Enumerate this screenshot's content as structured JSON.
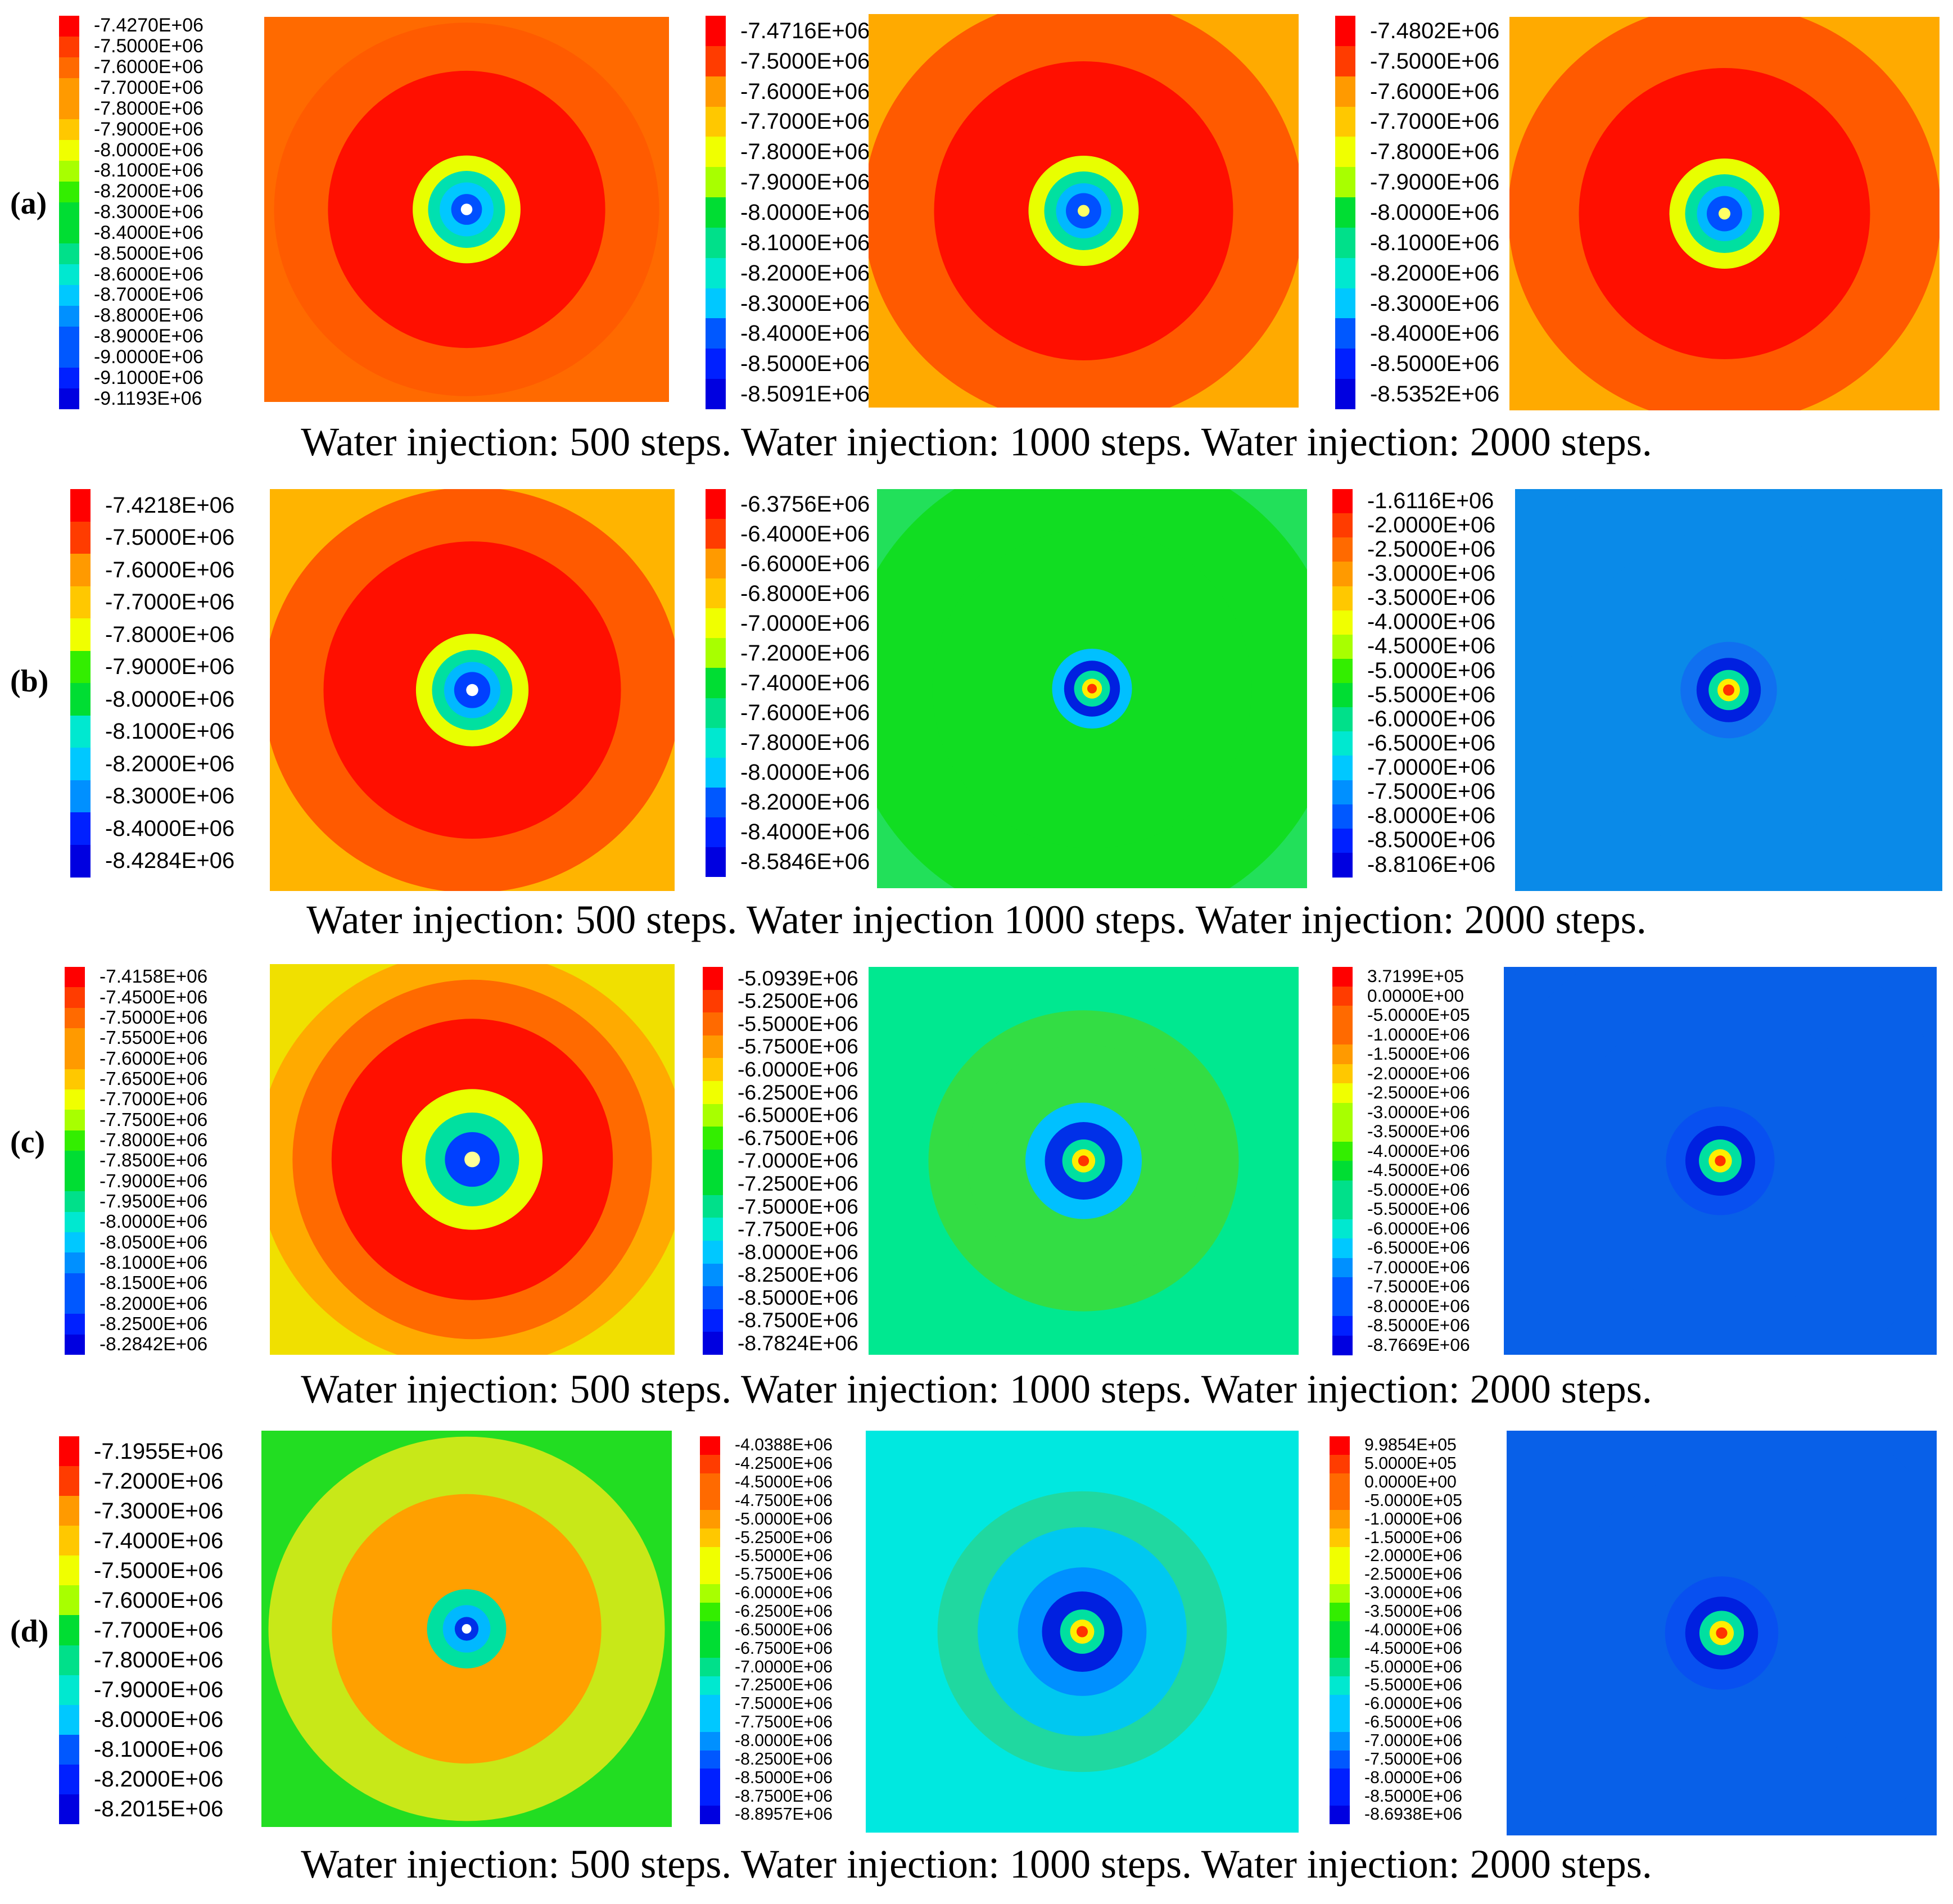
{
  "figure": {
    "rows": [
      {
        "label": "(a)",
        "caption": "Water injection: 500 steps. Water injection: 1000 steps. Water injection: 2000 steps.",
        "panels": [
          {
            "legend": [
              "-7.4270E+06",
              "-7.5000E+06",
              "-7.6000E+06",
              "-7.7000E+06",
              "-7.8000E+06",
              "-7.9000E+06",
              "-8.0000E+06",
              "-8.1000E+06",
              "-8.2000E+06",
              "-8.3000E+06",
              "-8.4000E+06",
              "-8.5000E+06",
              "-8.6000E+06",
              "-8.7000E+06",
              "-8.8000E+06",
              "-8.9000E+06",
              "-9.0000E+06",
              "-9.1000E+06",
              "-9.1193E+06"
            ],
            "field": [
              "#ff6a00",
              "#ff5b00",
              "#ff0f00",
              "#e8ff00",
              "#00e0b0",
              "#00c8ff",
              "#0050ff",
              "#ffffff"
            ]
          },
          {
            "legend": [
              "-7.4716E+06",
              "-7.5000E+06",
              "-7.6000E+06",
              "-7.7000E+06",
              "-7.8000E+06",
              "-7.9000E+06",
              "-8.0000E+06",
              "-8.1000E+06",
              "-8.2000E+06",
              "-8.3000E+06",
              "-8.4000E+06",
              "-8.5000E+06",
              "-8.5091E+06"
            ],
            "field": [
              "#ffaa00",
              "#ff5a00",
              "#ff0f00",
              "#e8ff00",
              "#00e0a0",
              "#00b8ff",
              "#0050ff",
              "#ffff66"
            ]
          },
          {
            "legend": [
              "-7.4802E+06",
              "-7.5000E+06",
              "-7.6000E+06",
              "-7.7000E+06",
              "-7.8000E+06",
              "-7.9000E+06",
              "-8.0000E+06",
              "-8.1000E+06",
              "-8.2000E+06",
              "-8.3000E+06",
              "-8.4000E+06",
              "-8.5000E+06",
              "-8.5352E+06"
            ],
            "field": [
              "#ffaa00",
              "#ff5a00",
              "#ff0f00",
              "#e8ff00",
              "#00e0a0",
              "#00b8ff",
              "#0050ff",
              "#ffff66"
            ]
          }
        ]
      },
      {
        "label": "(b)",
        "caption": "Water injection: 500 steps. Water injection 1000 steps. Water injection: 2000 steps.",
        "panels": [
          {
            "legend": [
              "-7.4218E+06",
              "-7.5000E+06",
              "-7.6000E+06",
              "-7.7000E+06",
              "-7.8000E+06",
              "-7.9000E+06",
              "-8.0000E+06",
              "-8.1000E+06",
              "-8.2000E+06",
              "-8.3000E+06",
              "-8.4000E+06",
              "-8.4284E+06"
            ],
            "field": [
              "#ffb400",
              "#ff5a00",
              "#ff0f00",
              "#e8ff00",
              "#00e0a0",
              "#00b8ff",
              "#0040ff",
              "#ffffff"
            ]
          },
          {
            "legend": [
              "-6.3756E+06",
              "-6.4000E+06",
              "-6.6000E+06",
              "-6.8000E+06",
              "-7.0000E+06",
              "-7.2000E+06",
              "-7.4000E+06",
              "-7.6000E+06",
              "-7.8000E+06",
              "-8.0000E+06",
              "-8.2000E+06",
              "-8.4000E+06",
              "-8.5846E+06"
            ],
            "field": [
              "#22e05a",
              "#11dd22",
              "#11dd22",
              "#00c0ff",
              "#0020e0",
              "#00e0a0",
              "#ffee00",
              "#ff3300"
            ]
          },
          {
            "legend": [
              "-1.6116E+06",
              "-2.0000E+06",
              "-2.5000E+06",
              "-3.0000E+06",
              "-3.5000E+06",
              "-4.0000E+06",
              "-4.5000E+06",
              "-5.0000E+06",
              "-5.5000E+06",
              "-6.0000E+06",
              "-6.5000E+06",
              "-7.0000E+06",
              "-7.5000E+06",
              "-8.0000E+06",
              "-8.5000E+06",
              "-8.8106E+06"
            ],
            "field": [
              "#0a8ae8",
              "#0a8ae8",
              "#0a8ae8",
              "#1070f0",
              "#0020e0",
              "#00e0a0",
              "#ffee00",
              "#ff3300"
            ]
          }
        ]
      },
      {
        "label": "(c)",
        "caption": "Water injection: 500 steps. Water injection: 1000 steps. Water injection: 2000 steps.",
        "panels": [
          {
            "legend": [
              "-7.4158E+06",
              "-7.4500E+06",
              "-7.5000E+06",
              "-7.5500E+06",
              "-7.6000E+06",
              "-7.6500E+06",
              "-7.7000E+06",
              "-7.7500E+06",
              "-7.8000E+06",
              "-7.8500E+06",
              "-7.9000E+06",
              "-7.9500E+06",
              "-8.0000E+06",
              "-8.0500E+06",
              "-8.1000E+06",
              "-8.1500E+06",
              "-8.2000E+06",
              "-8.2500E+06",
              "-8.2842E+06"
            ],
            "field": [
              "#f0e000",
              "#ffaa00",
              "#ff6a00",
              "#ff1000",
              "#e8ff00",
              "#00e0a0",
              "#0040ff",
              "#ffff99"
            ]
          },
          {
            "legend": [
              "-5.0939E+06",
              "-5.2500E+06",
              "-5.5000E+06",
              "-5.7500E+06",
              "-6.0000E+06",
              "-6.2500E+06",
              "-6.5000E+06",
              "-6.7500E+06",
              "-7.0000E+06",
              "-7.2500E+06",
              "-7.5000E+06",
              "-7.7500E+06",
              "-8.0000E+06",
              "-8.2500E+06",
              "-8.5000E+06",
              "-8.7500E+06",
              "-8.7824E+06"
            ],
            "field": [
              "#00e890",
              "#33dd44",
              "#33dd44",
              "#00c0ff",
              "#0030e8",
              "#00e0a0",
              "#ffee00",
              "#ff3300"
            ]
          },
          {
            "legend": [
              "3.7199E+05",
              "0.0000E+00",
              "-5.0000E+05",
              "-1.0000E+06",
              "-1.5000E+06",
              "-2.0000E+06",
              "-2.5000E+06",
              "-3.0000E+06",
              "-3.5000E+06",
              "-4.0000E+06",
              "-4.5000E+06",
              "-5.0000E+06",
              "-5.5000E+06",
              "-6.0000E+06",
              "-6.5000E+06",
              "-7.0000E+06",
              "-7.5000E+06",
              "-8.0000E+06",
              "-8.5000E+06",
              "-8.7669E+06"
            ],
            "field": [
              "#0860e8",
              "#0860e8",
              "#0860e8",
              "#0850f0",
              "#0020e0",
              "#00e0a0",
              "#ffee00",
              "#ff3300"
            ]
          }
        ]
      },
      {
        "label": "(d)",
        "caption": "Water injection: 500 steps. Water injection: 1000 steps. Water injection: 2000 steps.",
        "panels": [
          {
            "legend": [
              "-7.1955E+06",
              "-7.2000E+06",
              "-7.3000E+06",
              "-7.4000E+06",
              "-7.5000E+06",
              "-7.6000E+06",
              "-7.7000E+06",
              "-7.8000E+06",
              "-7.9000E+06",
              "-8.0000E+06",
              "-8.1000E+06",
              "-8.2000E+06",
              "-8.2015E+06"
            ],
            "field": [
              "#22dd22",
              "#c8e818",
              "#ffa000",
              "#ffa000",
              "#00e0a0",
              "#00b8ff",
              "#0030e8",
              "#ffffff"
            ]
          },
          {
            "legend": [
              "-4.0388E+06",
              "-4.2500E+06",
              "-4.5000E+06",
              "-4.7500E+06",
              "-5.0000E+06",
              "-5.2500E+06",
              "-5.5000E+06",
              "-5.7500E+06",
              "-6.0000E+06",
              "-6.2500E+06",
              "-6.5000E+06",
              "-6.7500E+06",
              "-7.0000E+06",
              "-7.2500E+06",
              "-7.5000E+06",
              "-7.7500E+06",
              "-8.0000E+06",
              "-8.2500E+06",
              "-8.5000E+06",
              "-8.7500E+06",
              "-8.8957E+06"
            ],
            "field": [
              "#00e8e0",
              "#20d8a0",
              "#00c8f0",
              "#0090ff",
              "#0020e0",
              "#00e0a0",
              "#ffee00",
              "#ff3300"
            ]
          },
          {
            "legend": [
              "9.9854E+05",
              "5.0000E+05",
              "0.0000E+00",
              "-5.0000E+05",
              "-1.0000E+06",
              "-1.5000E+06",
              "-2.0000E+06",
              "-2.5000E+06",
              "-3.0000E+06",
              "-3.5000E+06",
              "-4.0000E+06",
              "-4.5000E+06",
              "-5.0000E+06",
              "-5.5000E+06",
              "-6.0000E+06",
              "-6.5000E+06",
              "-7.0000E+06",
              "-7.5000E+06",
              "-8.0000E+06",
              "-8.5000E+06",
              "-8.6938E+06"
            ],
            "field": [
              "#0860e8",
              "#0860e8",
              "#0860e8",
              "#0850f0",
              "#0020e0",
              "#00e0a0",
              "#ffee00",
              "#ff3300"
            ]
          }
        ]
      }
    ]
  }
}
